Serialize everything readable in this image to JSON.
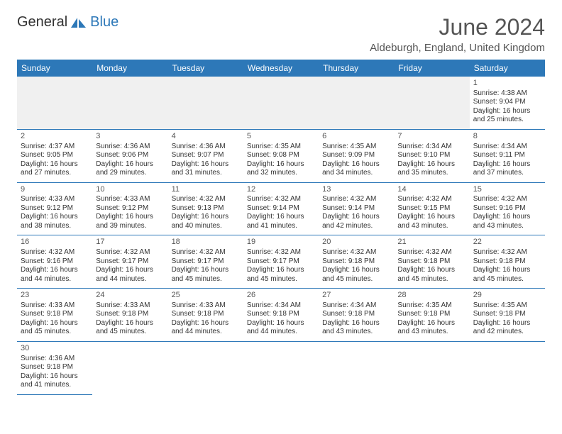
{
  "brand": {
    "part1": "General",
    "part2": "Blue",
    "logo_color": "#2d78b8"
  },
  "title": "June 2024",
  "location": "Aldeburgh, England, United Kingdom",
  "header_bg": "#2d78b8",
  "header_fg": "#ffffff",
  "border_color": "#2d78b8",
  "empty_row_bg": "#f0f0f0",
  "text_color": "#333333",
  "body_font_size": 10,
  "title_font_size": 32,
  "location_font_size": 15,
  "header_font_size": 12,
  "day_headers": [
    "Sunday",
    "Monday",
    "Tuesday",
    "Wednesday",
    "Thursday",
    "Friday",
    "Saturday"
  ],
  "weeks": [
    [
      null,
      null,
      null,
      null,
      null,
      null,
      {
        "n": "1",
        "sr": "4:38 AM",
        "ss": "9:04 PM",
        "dl": "16 hours and 25 minutes."
      }
    ],
    [
      {
        "n": "2",
        "sr": "4:37 AM",
        "ss": "9:05 PM",
        "dl": "16 hours and 27 minutes."
      },
      {
        "n": "3",
        "sr": "4:36 AM",
        "ss": "9:06 PM",
        "dl": "16 hours and 29 minutes."
      },
      {
        "n": "4",
        "sr": "4:36 AM",
        "ss": "9:07 PM",
        "dl": "16 hours and 31 minutes."
      },
      {
        "n": "5",
        "sr": "4:35 AM",
        "ss": "9:08 PM",
        "dl": "16 hours and 32 minutes."
      },
      {
        "n": "6",
        "sr": "4:35 AM",
        "ss": "9:09 PM",
        "dl": "16 hours and 34 minutes."
      },
      {
        "n": "7",
        "sr": "4:34 AM",
        "ss": "9:10 PM",
        "dl": "16 hours and 35 minutes."
      },
      {
        "n": "8",
        "sr": "4:34 AM",
        "ss": "9:11 PM",
        "dl": "16 hours and 37 minutes."
      }
    ],
    [
      {
        "n": "9",
        "sr": "4:33 AM",
        "ss": "9:12 PM",
        "dl": "16 hours and 38 minutes."
      },
      {
        "n": "10",
        "sr": "4:33 AM",
        "ss": "9:12 PM",
        "dl": "16 hours and 39 minutes."
      },
      {
        "n": "11",
        "sr": "4:32 AM",
        "ss": "9:13 PM",
        "dl": "16 hours and 40 minutes."
      },
      {
        "n": "12",
        "sr": "4:32 AM",
        "ss": "9:14 PM",
        "dl": "16 hours and 41 minutes."
      },
      {
        "n": "13",
        "sr": "4:32 AM",
        "ss": "9:14 PM",
        "dl": "16 hours and 42 minutes."
      },
      {
        "n": "14",
        "sr": "4:32 AM",
        "ss": "9:15 PM",
        "dl": "16 hours and 43 minutes."
      },
      {
        "n": "15",
        "sr": "4:32 AM",
        "ss": "9:16 PM",
        "dl": "16 hours and 43 minutes."
      }
    ],
    [
      {
        "n": "16",
        "sr": "4:32 AM",
        "ss": "9:16 PM",
        "dl": "16 hours and 44 minutes."
      },
      {
        "n": "17",
        "sr": "4:32 AM",
        "ss": "9:17 PM",
        "dl": "16 hours and 44 minutes."
      },
      {
        "n": "18",
        "sr": "4:32 AM",
        "ss": "9:17 PM",
        "dl": "16 hours and 45 minutes."
      },
      {
        "n": "19",
        "sr": "4:32 AM",
        "ss": "9:17 PM",
        "dl": "16 hours and 45 minutes."
      },
      {
        "n": "20",
        "sr": "4:32 AM",
        "ss": "9:18 PM",
        "dl": "16 hours and 45 minutes."
      },
      {
        "n": "21",
        "sr": "4:32 AM",
        "ss": "9:18 PM",
        "dl": "16 hours and 45 minutes."
      },
      {
        "n": "22",
        "sr": "4:32 AM",
        "ss": "9:18 PM",
        "dl": "16 hours and 45 minutes."
      }
    ],
    [
      {
        "n": "23",
        "sr": "4:33 AM",
        "ss": "9:18 PM",
        "dl": "16 hours and 45 minutes."
      },
      {
        "n": "24",
        "sr": "4:33 AM",
        "ss": "9:18 PM",
        "dl": "16 hours and 45 minutes."
      },
      {
        "n": "25",
        "sr": "4:33 AM",
        "ss": "9:18 PM",
        "dl": "16 hours and 44 minutes."
      },
      {
        "n": "26",
        "sr": "4:34 AM",
        "ss": "9:18 PM",
        "dl": "16 hours and 44 minutes."
      },
      {
        "n": "27",
        "sr": "4:34 AM",
        "ss": "9:18 PM",
        "dl": "16 hours and 43 minutes."
      },
      {
        "n": "28",
        "sr": "4:35 AM",
        "ss": "9:18 PM",
        "dl": "16 hours and 43 minutes."
      },
      {
        "n": "29",
        "sr": "4:35 AM",
        "ss": "9:18 PM",
        "dl": "16 hours and 42 minutes."
      }
    ],
    [
      {
        "n": "30",
        "sr": "4:36 AM",
        "ss": "9:18 PM",
        "dl": "16 hours and 41 minutes."
      },
      null,
      null,
      null,
      null,
      null,
      null
    ]
  ],
  "labels": {
    "sunrise": "Sunrise:",
    "sunset": "Sunset:",
    "daylight": "Daylight:"
  }
}
